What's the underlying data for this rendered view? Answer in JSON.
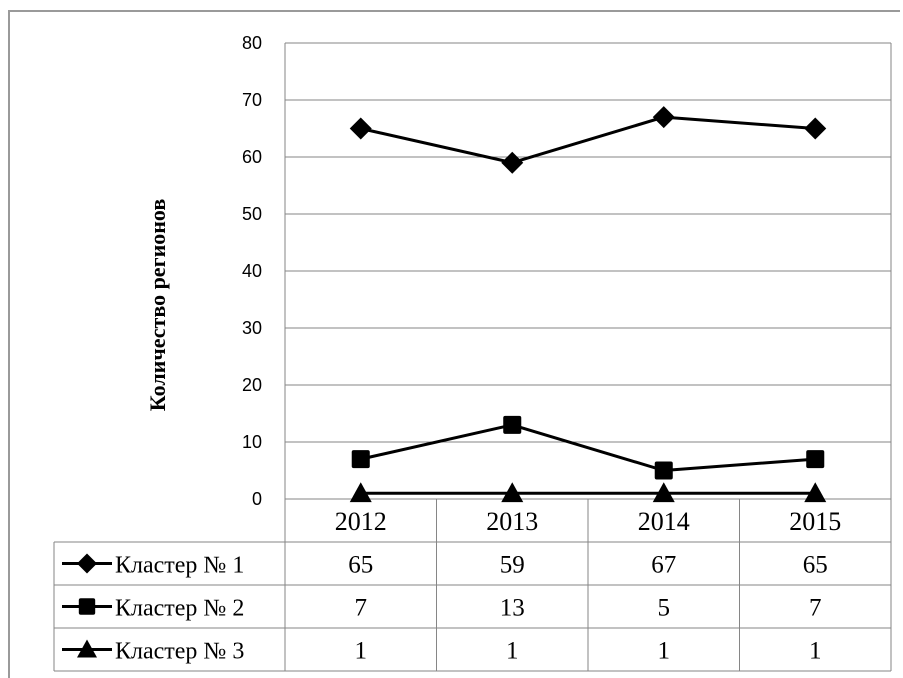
{
  "chart_data": {
    "type": "line",
    "categories": [
      "2012",
      "2013",
      "2014",
      "2015"
    ],
    "series": [
      {
        "name": "Кластер № 1",
        "marker": "diamond",
        "values": [
          65,
          59,
          67,
          65
        ]
      },
      {
        "name": "Кластер № 2",
        "marker": "square",
        "values": [
          7,
          13,
          5,
          7
        ]
      },
      {
        "name": "Кластер № 3",
        "marker": "triangle",
        "values": [
          1,
          1,
          1,
          1
        ]
      }
    ],
    "ylabel": "Количество регионов",
    "xlabel": "",
    "title": "",
    "ylim": [
      0,
      80
    ],
    "yticks": [
      "0",
      "10",
      "20",
      "30",
      "40",
      "50",
      "60",
      "70",
      "80"
    ],
    "grid": true,
    "legend": "data table",
    "colors": {
      "line": "#000000",
      "grid": "#868686",
      "border": "#9a9a9a"
    }
  }
}
